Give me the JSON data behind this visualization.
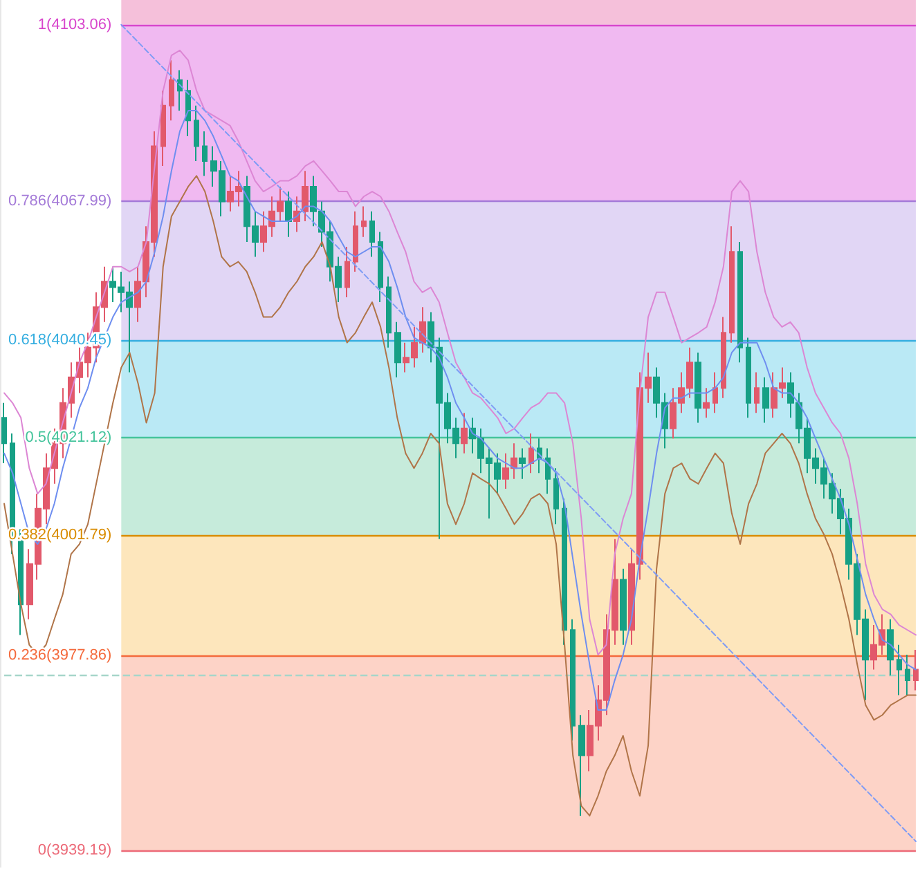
{
  "chart_data": {
    "type": "candlestick",
    "yticks": [
      1,
      0.786,
      0.618,
      0.5,
      0.382,
      0.236,
      0
    ],
    "annotations": [
      "(4103.06)",
      "(4067.99)",
      "(4040.45)",
      "(4021.12)",
      "(4001.79)",
      "(3977.86)",
      "(3939.19)"
    ],
    "categories": [
      null,
      null,
      null,
      null,
      null,
      null,
      null,
      null,
      null,
      null,
      null,
      null,
      null,
      null,
      null,
      null,
      null,
      null,
      null,
      null,
      null,
      null,
      null,
      null,
      null,
      null,
      null,
      null,
      null,
      null,
      null,
      null,
      null,
      null,
      null,
      null,
      null,
      null,
      null,
      null,
      null,
      null,
      null,
      null,
      null,
      null,
      null,
      null,
      null,
      null,
      null,
      null,
      null,
      null,
      null,
      null,
      null,
      null,
      null,
      null,
      null,
      null,
      null,
      null,
      null,
      null,
      null,
      null,
      null,
      null,
      null,
      null,
      null,
      null,
      null,
      null,
      null,
      null,
      null,
      null,
      null,
      null,
      null,
      null,
      null,
      null,
      null,
      null,
      null,
      null,
      null,
      null,
      null,
      null,
      null,
      null,
      null,
      null,
      null,
      null,
      null,
      null,
      null,
      null,
      null,
      null,
      null,
      null,
      null,
      null
    ],
    "ylim": [
      -0.02,
      1.03
    ],
    "series": [
      {
        "type": "candlestick",
        "ohlc": [
          [
            0.524,
            0.542,
            0.469,
            0.493
          ],
          [
            0.493,
            0.505,
            0.359,
            0.377
          ],
          [
            0.377,
            0.389,
            0.261,
            0.298
          ],
          [
            0.298,
            0.365,
            0.28,
            0.347
          ],
          [
            0.347,
            0.432,
            0.328,
            0.414
          ],
          [
            0.414,
            0.481,
            0.395,
            0.463
          ],
          [
            0.463,
            0.511,
            0.444,
            0.493
          ],
          [
            0.493,
            0.56,
            0.475,
            0.542
          ],
          [
            0.542,
            0.591,
            0.524,
            0.573
          ],
          [
            0.573,
            0.609,
            0.554,
            0.591
          ],
          [
            0.591,
            0.627,
            0.573,
            0.609
          ],
          [
            0.609,
            0.676,
            0.591,
            0.658
          ],
          [
            0.658,
            0.707,
            0.64,
            0.689
          ],
          [
            0.689,
            0.707,
            0.664,
            0.682
          ],
          [
            0.682,
            0.701,
            0.652,
            0.676
          ],
          [
            0.676,
            0.689,
            0.579,
            0.658
          ],
          [
            0.658,
            0.707,
            0.64,
            0.689
          ],
          [
            0.689,
            0.756,
            0.67,
            0.737
          ],
          [
            0.737,
            0.871,
            0.719,
            0.853
          ],
          [
            0.853,
            0.92,
            0.829,
            0.902
          ],
          [
            0.902,
            0.957,
            0.884,
            0.933
          ],
          [
            0.933,
            0.945,
            0.896,
            0.92
          ],
          [
            0.92,
            0.933,
            0.865,
            0.884
          ],
          [
            0.884,
            0.902,
            0.835,
            0.853
          ],
          [
            0.853,
            0.871,
            0.817,
            0.835
          ],
          [
            0.835,
            0.853,
            0.804,
            0.823
          ],
          [
            0.823,
            0.835,
            0.768,
            0.786
          ],
          [
            0.786,
            0.817,
            0.774,
            0.798
          ],
          [
            0.798,
            0.823,
            0.78,
            0.804
          ],
          [
            0.804,
            0.817,
            0.737,
            0.756
          ],
          [
            0.756,
            0.774,
            0.719,
            0.737
          ],
          [
            0.737,
            0.774,
            0.725,
            0.756
          ],
          [
            0.756,
            0.792,
            0.743,
            0.774
          ],
          [
            0.774,
            0.804,
            0.762,
            0.786
          ],
          [
            0.786,
            0.798,
            0.743,
            0.762
          ],
          [
            0.762,
            0.792,
            0.749,
            0.774
          ],
          [
            0.774,
            0.823,
            0.762,
            0.804
          ],
          [
            0.804,
            0.817,
            0.756,
            0.774
          ],
          [
            0.774,
            0.786,
            0.731,
            0.749
          ],
          [
            0.749,
            0.762,
            0.689,
            0.707
          ],
          [
            0.707,
            0.719,
            0.664,
            0.682
          ],
          [
            0.682,
            0.731,
            0.67,
            0.713
          ],
          [
            0.713,
            0.774,
            0.701,
            0.756
          ],
          [
            0.756,
            0.78,
            0.743,
            0.762
          ],
          [
            0.762,
            0.774,
            0.719,
            0.737
          ],
          [
            0.737,
            0.749,
            0.664,
            0.682
          ],
          [
            0.682,
            0.695,
            0.609,
            0.627
          ],
          [
            0.627,
            0.64,
            0.573,
            0.591
          ],
          [
            0.591,
            0.615,
            0.579,
            0.597
          ],
          [
            0.597,
            0.634,
            0.585,
            0.615
          ],
          [
            0.615,
            0.658,
            0.603,
            0.64
          ],
          [
            0.64,
            0.652,
            0.591,
            0.609
          ],
          [
            0.609,
            0.621,
            0.377,
            0.542
          ],
          [
            0.542,
            0.554,
            0.493,
            0.511
          ],
          [
            0.511,
            0.524,
            0.475,
            0.493
          ],
          [
            0.493,
            0.53,
            0.481,
            0.511
          ],
          [
            0.511,
            0.524,
            0.481,
            0.499
          ],
          [
            0.499,
            0.511,
            0.457,
            0.475
          ],
          [
            0.475,
            0.487,
            0.402,
            0.469
          ],
          [
            0.469,
            0.481,
            0.432,
            0.45
          ],
          [
            0.45,
            0.481,
            0.438,
            0.463
          ],
          [
            0.463,
            0.493,
            0.45,
            0.475
          ],
          [
            0.475,
            0.487,
            0.45,
            0.469
          ],
          [
            0.469,
            0.505,
            0.457,
            0.487
          ],
          [
            0.487,
            0.499,
            0.457,
            0.475
          ],
          [
            0.475,
            0.487,
            0.432,
            0.45
          ],
          [
            0.45,
            0.463,
            0.395,
            0.414
          ],
          [
            0.414,
            0.426,
            0.249,
            0.267
          ],
          [
            0.267,
            0.28,
            0.133,
            0.151
          ],
          [
            0.151,
            0.164,
            0.042,
            0.115
          ],
          [
            0.115,
            0.17,
            0.096,
            0.151
          ],
          [
            0.151,
            0.2,
            0.133,
            0.182
          ],
          [
            0.182,
            0.286,
            0.164,
            0.267
          ],
          [
            0.267,
            0.377,
            0.249,
            0.328
          ],
          [
            0.328,
            0.341,
            0.249,
            0.267
          ],
          [
            0.267,
            0.365,
            0.249,
            0.347
          ],
          [
            0.347,
            0.579,
            0.328,
            0.56
          ],
          [
            0.56,
            0.603,
            0.542,
            0.573
          ],
          [
            0.573,
            0.585,
            0.524,
            0.542
          ],
          [
            0.542,
            0.554,
            0.487,
            0.511
          ],
          [
            0.511,
            0.56,
            0.499,
            0.542
          ],
          [
            0.542,
            0.579,
            0.53,
            0.56
          ],
          [
            0.56,
            0.609,
            0.548,
            0.591
          ],
          [
            0.591,
            0.603,
            0.518,
            0.536
          ],
          [
            0.536,
            0.56,
            0.524,
            0.542
          ],
          [
            0.542,
            0.579,
            0.53,
            0.56
          ],
          [
            0.56,
            0.646,
            0.548,
            0.627
          ],
          [
            0.627,
            0.756,
            0.615,
            0.725
          ],
          [
            0.725,
            0.737,
            0.591,
            0.609
          ],
          [
            0.609,
            0.621,
            0.524,
            0.542
          ],
          [
            0.542,
            0.579,
            0.53,
            0.56
          ],
          [
            0.56,
            0.573,
            0.518,
            0.536
          ],
          [
            0.536,
            0.579,
            0.524,
            0.56
          ],
          [
            0.56,
            0.585,
            0.548,
            0.566
          ],
          [
            0.566,
            0.579,
            0.524,
            0.542
          ],
          [
            0.542,
            0.554,
            0.493,
            0.511
          ],
          [
            0.511,
            0.524,
            0.457,
            0.475
          ],
          [
            0.475,
            0.487,
            0.444,
            0.463
          ],
          [
            0.463,
            0.475,
            0.426,
            0.444
          ],
          [
            0.444,
            0.457,
            0.408,
            0.426
          ],
          [
            0.426,
            0.438,
            0.383,
            0.402
          ],
          [
            0.402,
            0.414,
            0.328,
            0.347
          ],
          [
            0.347,
            0.359,
            0.261,
            0.28
          ],
          [
            0.28,
            0.292,
            0.182,
            0.231
          ],
          [
            0.231,
            0.273,
            0.219,
            0.249
          ],
          [
            0.249,
            0.286,
            0.237,
            0.267
          ],
          [
            0.267,
            0.28,
            0.212,
            0.231
          ],
          [
            0.231,
            0.249,
            0.188,
            0.219
          ],
          [
            0.219,
            0.237,
            0.188,
            0.206
          ],
          [
            0.206,
            0.243,
            0.194,
            0.219
          ]
        ],
        "colors": [
          "#16a085",
          "#16a085",
          "#16a085",
          "#e2596b",
          "#e2596b",
          "#e2596b",
          "#e2596b",
          "#e2596b",
          "#e2596b",
          "#e2596b",
          "#e2596b",
          "#e2596b",
          "#e2596b",
          "#16a085",
          "#16a085",
          "#16a085",
          "#e2596b",
          "#e2596b",
          "#e2596b",
          "#e2596b",
          "#e2596b",
          "#16a085",
          "#16a085",
          "#16a085",
          "#16a085",
          "#16a085",
          "#16a085",
          "#e2596b",
          "#e2596b",
          "#16a085",
          "#16a085",
          "#e2596b",
          "#e2596b",
          "#e2596b",
          "#16a085",
          "#e2596b",
          "#e2596b",
          "#16a085",
          "#16a085",
          "#16a085",
          "#16a085",
          "#e2596b",
          "#e2596b",
          "#e2596b",
          "#16a085",
          "#16a085",
          "#16a085",
          "#16a085",
          "#e2596b",
          "#e2596b",
          "#e2596b",
          "#16a085",
          "#16a085",
          "#16a085",
          "#16a085",
          "#e2596b",
          "#16a085",
          "#16a085",
          "#16a085",
          "#16a085",
          "#e2596b",
          "#e2596b",
          "#16a085",
          "#e2596b",
          "#16a085",
          "#16a085",
          "#16a085",
          "#16a085",
          "#16a085",
          "#16a085",
          "#e2596b",
          "#e2596b",
          "#e2596b",
          "#e2596b",
          "#16a085",
          "#e2596b",
          "#e2596b",
          "#e2596b",
          "#16a085",
          "#16a085",
          "#e2596b",
          "#e2596b",
          "#e2596b",
          "#16a085",
          "#e2596b",
          "#e2596b",
          "#e2596b",
          "#e2596b",
          "#16a085",
          "#16a085",
          "#e2596b",
          "#16a085",
          "#e2596b",
          "#e2596b",
          "#16a085",
          "#16a085",
          "#16a085",
          "#16a085",
          "#16a085",
          "#16a085",
          "#16a085",
          "#16a085",
          "#16a085",
          "#16a085",
          "#e2596b",
          "#e2596b",
          "#16a085",
          "#16a085",
          "#16a085",
          "#e2596b"
        ]
      },
      {
        "type": "line",
        "color": "#6e8ef0",
        "values": [
          0.481,
          0.457,
          0.42,
          0.383,
          0.371,
          0.389,
          0.42,
          0.463,
          0.499,
          0.536,
          0.56,
          0.597,
          0.621,
          0.646,
          0.664,
          0.67,
          0.676,
          0.689,
          0.725,
          0.768,
          0.823,
          0.871,
          0.896,
          0.896,
          0.884,
          0.865,
          0.841,
          0.817,
          0.811,
          0.792,
          0.774,
          0.768,
          0.762,
          0.762,
          0.762,
          0.768,
          0.78,
          0.78,
          0.774,
          0.762,
          0.743,
          0.725,
          0.719,
          0.725,
          0.731,
          0.731,
          0.713,
          0.682,
          0.646,
          0.621,
          0.615,
          0.609,
          0.597,
          0.573,
          0.542,
          0.524,
          0.505,
          0.499,
          0.487,
          0.475,
          0.469,
          0.463,
          0.463,
          0.469,
          0.475,
          0.469,
          0.457,
          0.42,
          0.353,
          0.286,
          0.225,
          0.17,
          0.17,
          0.206,
          0.237,
          0.28,
          0.353,
          0.414,
          0.481,
          0.536,
          0.548,
          0.548,
          0.554,
          0.554,
          0.554,
          0.56,
          0.573,
          0.603,
          0.615,
          0.615,
          0.615,
          0.591,
          0.56,
          0.554,
          0.554,
          0.542,
          0.524,
          0.499,
          0.475,
          0.45,
          0.426,
          0.395,
          0.353,
          0.31,
          0.28,
          0.255,
          0.249,
          0.237,
          0.225,
          0.219
        ]
      },
      {
        "type": "line",
        "color": "#dc86d4",
        "values": [
          0.554,
          0.542,
          0.524,
          0.463,
          0.432,
          0.444,
          0.481,
          0.518,
          0.554,
          0.591,
          0.615,
          0.646,
          0.676,
          0.707,
          0.707,
          0.701,
          0.707,
          0.737,
          0.829,
          0.92,
          0.963,
          0.969,
          0.957,
          0.92,
          0.896,
          0.89,
          0.884,
          0.878,
          0.859,
          0.835,
          0.811,
          0.798,
          0.804,
          0.811,
          0.811,
          0.817,
          0.829,
          0.835,
          0.823,
          0.811,
          0.798,
          0.798,
          0.78,
          0.792,
          0.798,
          0.792,
          0.774,
          0.749,
          0.725,
          0.689,
          0.676,
          0.682,
          0.664,
          0.627,
          0.591,
          0.573,
          0.554,
          0.548,
          0.536,
          0.524,
          0.505,
          0.511,
          0.524,
          0.536,
          0.542,
          0.554,
          0.554,
          0.542,
          0.493,
          0.402,
          0.28,
          0.237,
          0.249,
          0.359,
          0.402,
          0.432,
          0.554,
          0.646,
          0.676,
          0.676,
          0.646,
          0.615,
          0.621,
          0.627,
          0.634,
          0.664,
          0.707,
          0.798,
          0.811,
          0.798,
          0.725,
          0.676,
          0.646,
          0.634,
          0.64,
          0.627,
          0.585,
          0.554,
          0.536,
          0.518,
          0.505,
          0.475,
          0.42,
          0.347,
          0.31,
          0.292,
          0.286,
          0.273,
          0.267,
          0.261
        ]
      },
      {
        "type": "line",
        "color": "#b07448",
        "values": [
          0.42,
          0.359,
          0.298,
          0.249,
          0.237,
          0.249,
          0.28,
          0.31,
          0.359,
          0.371,
          0.395,
          0.444,
          0.493,
          0.542,
          0.585,
          0.603,
          0.566,
          0.518,
          0.554,
          0.707,
          0.768,
          0.786,
          0.804,
          0.817,
          0.798,
          0.762,
          0.719,
          0.707,
          0.713,
          0.701,
          0.676,
          0.646,
          0.646,
          0.658,
          0.676,
          0.689,
          0.707,
          0.719,
          0.737,
          0.707,
          0.646,
          0.615,
          0.627,
          0.646,
          0.664,
          0.634,
          0.585,
          0.524,
          0.481,
          0.463,
          0.481,
          0.505,
          0.493,
          0.42,
          0.395,
          0.42,
          0.457,
          0.45,
          0.444,
          0.432,
          0.414,
          0.395,
          0.408,
          0.426,
          0.432,
          0.42,
          0.371,
          0.249,
          0.115,
          0.054,
          0.042,
          0.066,
          0.096,
          0.115,
          0.139,
          0.096,
          0.066,
          0.127,
          0.341,
          0.432,
          0.463,
          0.469,
          0.45,
          0.444,
          0.463,
          0.481,
          0.469,
          0.408,
          0.371,
          0.42,
          0.444,
          0.481,
          0.493,
          0.505,
          0.493,
          0.469,
          0.432,
          0.402,
          0.383,
          0.359,
          0.322,
          0.28,
          0.225,
          0.176,
          0.158,
          0.164,
          0.176,
          0.182,
          0.188,
          0.188
        ]
      },
      {
        "type": "line",
        "color": "#7f9cf5",
        "line_style": "dashed",
        "values": [
          null,
          null,
          null,
          null,
          null,
          null,
          null,
          null,
          null,
          null,
          null,
          null,
          null,
          null,
          1,
          null,
          null,
          null,
          null,
          null,
          null,
          null,
          null,
          null,
          null,
          null,
          null,
          null,
          null,
          null,
          null,
          null,
          null,
          null,
          null,
          null,
          null,
          null,
          null,
          null,
          null,
          null,
          null,
          null,
          null,
          null,
          null,
          null,
          null,
          null,
          null,
          null,
          null,
          null,
          null,
          null,
          null,
          null,
          null,
          null,
          null,
          null,
          null,
          null,
          null,
          null,
          null,
          null,
          null,
          null,
          null,
          null,
          null,
          null,
          null,
          null,
          null,
          null,
          null,
          null,
          null,
          null,
          null,
          null,
          null,
          null,
          null,
          null,
          null,
          null,
          null,
          null,
          null,
          null,
          null,
          null,
          null,
          null,
          null,
          null,
          null,
          null,
          null,
          null,
          null,
          null,
          null,
          null,
          null,
          0.011
        ]
      }
    ],
    "bands": [
      {
        "axis": "y",
        "from": 1,
        "to": 1.03,
        "color": "#f5c0da"
      },
      {
        "axis": "y",
        "from": 0.786,
        "to": 1,
        "color": "#f0b9f1"
      },
      {
        "axis": "y",
        "from": 0.618,
        "to": 0.786,
        "color": "#e1d6f5"
      },
      {
        "axis": "y",
        "from": 0.5,
        "to": 0.618,
        "color": "#bae9f5"
      },
      {
        "axis": "y",
        "from": 0.382,
        "to": 0.5,
        "color": "#c6ebdb"
      },
      {
        "axis": "y",
        "from": 0.236,
        "to": 0.382,
        "color": "#fde6bc"
      },
      {
        "axis": "y",
        "from": 0,
        "to": 0.236,
        "color": "#fdd3c7"
      }
    ],
    "ref_lines": [
      {
        "axis": "y",
        "value": 1,
        "color": "#d846cc"
      },
      {
        "axis": "y",
        "value": 0.786,
        "color": "#a47ad8"
      },
      {
        "axis": "y",
        "value": 0.618,
        "color": "#35aee0"
      },
      {
        "axis": "y",
        "value": 0.5,
        "color": "#45c49c"
      },
      {
        "axis": "y",
        "value": 0.382,
        "color": "#d98c00"
      },
      {
        "axis": "y",
        "value": 0.236,
        "color": "#f46a3c"
      },
      {
        "axis": "y",
        "value": 0,
        "color": "#ec6a78"
      },
      {
        "axis": "y",
        "value": 0.212,
        "color": "#a6d6ca",
        "line_style": "dashed"
      }
    ]
  }
}
